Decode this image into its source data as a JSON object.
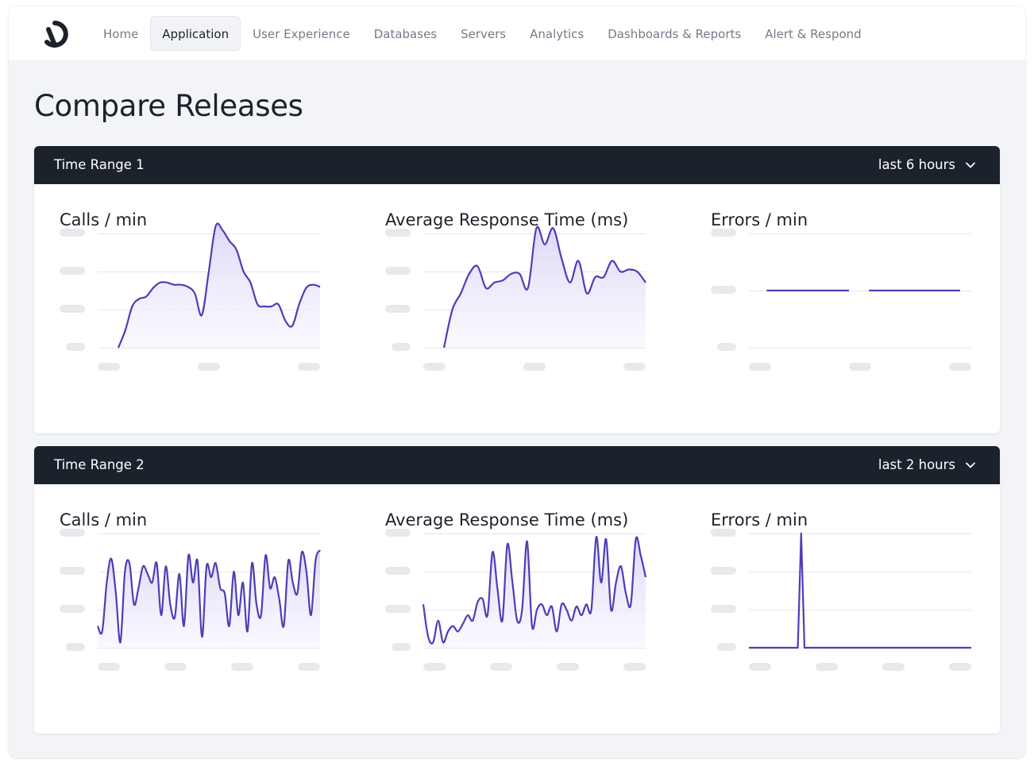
{
  "nav": {
    "items": [
      "Home",
      "Application",
      "User Experience",
      "Databases",
      "Servers",
      "Analytics",
      "Dashboards & Reports",
      "Alert & Respond"
    ],
    "active": "Application"
  },
  "page": {
    "title": "Compare Releases"
  },
  "colors": {
    "accent": "#4b3fb5",
    "fill": "#ece9fa",
    "header": "#1b222c",
    "grid": "#e6e7eb",
    "placeholder": "#e8e9ed"
  },
  "panels": [
    {
      "title": "Time Range 1",
      "range": "last 6 hours",
      "metrics": [
        {
          "title": "Calls / min",
          "x_placeholders": 3,
          "series": [
            0,
            0.16,
            0.38,
            0.45,
            0.47,
            0.55,
            0.6,
            0.6,
            0.58,
            0.58,
            0.56,
            0.5,
            0.3,
            0.7,
            1.12,
            1.08,
            0.98,
            0.9,
            0.7,
            0.6,
            0.4,
            0.38,
            0.38,
            0.4,
            0.25,
            0.2,
            0.4,
            0.55,
            0.58,
            0.56
          ],
          "fill": true
        },
        {
          "title": "Average Response Time (ms)",
          "x_placeholders": 3,
          "series": [
            0,
            0.35,
            0.5,
            0.68,
            0.75,
            0.55,
            0.6,
            0.62,
            0.68,
            0.68,
            0.55,
            1.1,
            0.95,
            1.1,
            0.82,
            0.6,
            0.8,
            0.5,
            0.65,
            0.65,
            0.8,
            0.7,
            0.72,
            0.7,
            0.6
          ],
          "fill": true
        },
        {
          "title": "Errors / min",
          "x_placeholders": 3,
          "segments": [
            [
              0.08,
              0.45,
              0.5
            ],
            [
              0.54,
              0.95,
              0.5
            ]
          ],
          "fill": false
        }
      ]
    },
    {
      "title": "Time Range 2",
      "range": "last 2 hours",
      "metrics": [
        {
          "title": "Calls / min",
          "x_placeholders": 4,
          "series": [
            0.2,
            0.15,
            0.6,
            0.82,
            0.5,
            0.05,
            0.7,
            0.78,
            0.4,
            0.55,
            0.75,
            0.68,
            0.6,
            0.78,
            0.3,
            0.75,
            0.4,
            0.28,
            0.68,
            0.2,
            0.85,
            0.6,
            0.8,
            0.1,
            0.75,
            0.65,
            0.78,
            0.55,
            0.5,
            0.2,
            0.7,
            0.3,
            0.6,
            0.15,
            0.78,
            0.4,
            0.3,
            0.85,
            0.55,
            0.65,
            0.45,
            0.2,
            0.8,
            0.6,
            0.5,
            0.88,
            0.7,
            0.3,
            0.8,
            0.9
          ],
          "fill": true
        },
        {
          "title": "Average Response Time (ms)",
          "x_placeholders": 4,
          "series": [
            0.4,
            0.1,
            0.05,
            0.25,
            0.05,
            0.15,
            0.2,
            0.15,
            0.22,
            0.3,
            0.25,
            0.42,
            0.45,
            0.3,
            0.88,
            0.55,
            0.25,
            0.95,
            0.62,
            0.25,
            0.35,
            0.98,
            0.2,
            0.35,
            0.4,
            0.3,
            0.38,
            0.15,
            0.4,
            0.35,
            0.25,
            0.38,
            0.3,
            0.4,
            0.35,
            1.02,
            0.6,
            1.0,
            0.35,
            0.6,
            0.75,
            0.5,
            0.4,
            1.0,
            0.85,
            0.65
          ],
          "fill": true
        },
        {
          "title": "Errors / min",
          "x_placeholders": 4,
          "spike": {
            "position": 0.22,
            "width": 0.03,
            "height": 1.0
          },
          "fill": false
        }
      ]
    }
  ]
}
